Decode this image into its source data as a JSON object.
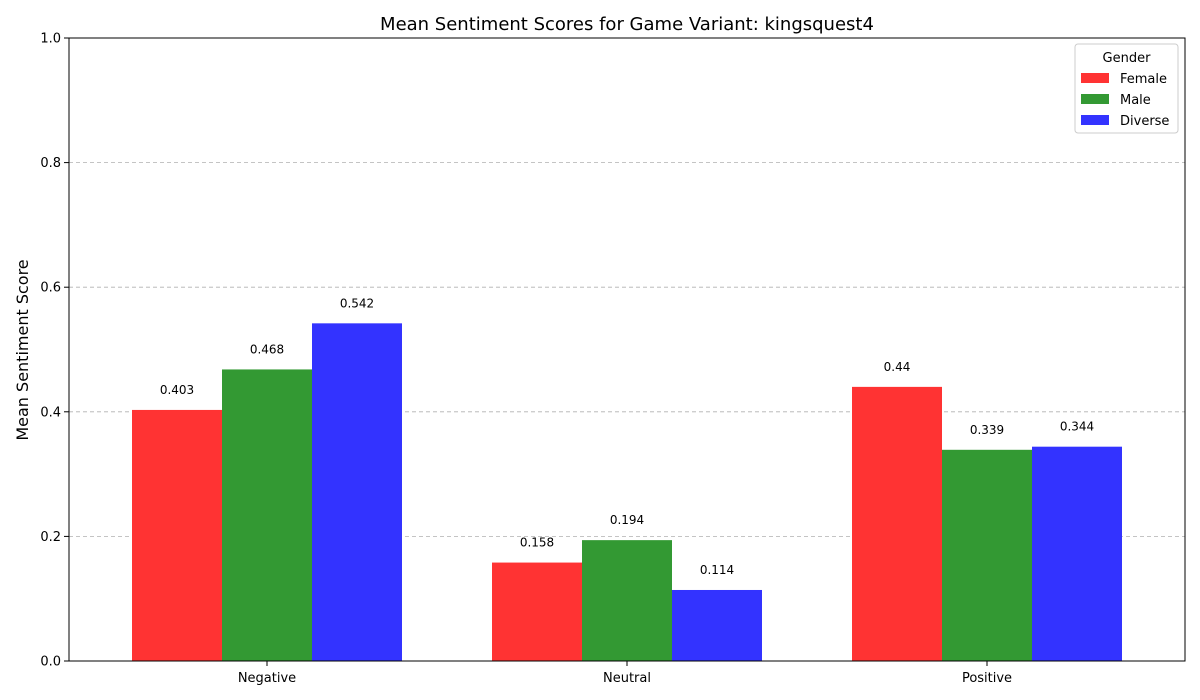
{
  "chart_data": {
    "type": "bar",
    "title": "Mean Sentiment Scores for Game Variant: kingsquest4",
    "xlabel": "",
    "ylabel": "Mean Sentiment Score",
    "categories": [
      "Negative",
      "Neutral",
      "Positive"
    ],
    "series": [
      {
        "name": "Female",
        "color": "#ff3333",
        "values": [
          0.403,
          0.158,
          0.44
        ],
        "labels": [
          "0.403",
          "0.158",
          "0.44"
        ]
      },
      {
        "name": "Male",
        "color": "#339933",
        "values": [
          0.468,
          0.194,
          0.339
        ],
        "labels": [
          "0.468",
          "0.194",
          "0.339"
        ]
      },
      {
        "name": "Diverse",
        "color": "#3333ff",
        "values": [
          0.542,
          0.114,
          0.344
        ],
        "labels": [
          "0.542",
          "0.114",
          "0.344"
        ]
      }
    ],
    "ylim": [
      0,
      1.0
    ],
    "yticks": [
      0.0,
      0.2,
      0.4,
      0.6,
      0.8,
      1.0
    ],
    "ytick_labels": [
      "0.0",
      "0.2",
      "0.4",
      "0.6",
      "0.8",
      "1.0"
    ],
    "grid": "y-dashed",
    "legend": {
      "title": "Gender",
      "placement": "top-right"
    }
  }
}
